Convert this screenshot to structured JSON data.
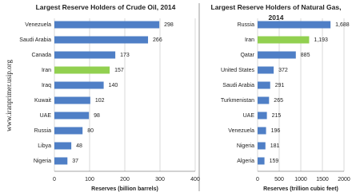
{
  "watermark": "www.iranprimer.usip.org",
  "chart_data": [
    {
      "type": "bar",
      "orientation": "horizontal",
      "title": "Largest Reserve Holders of Crude Oil, 2014",
      "categories": [
        "Venezuela",
        "Saudi Arabia",
        "Canada",
        "Iran",
        "Iraq",
        "Kuwait",
        "UAE",
        "Russia",
        "Libya",
        "Nigeria"
      ],
      "values": [
        298,
        266,
        173,
        157,
        140,
        102,
        98,
        80,
        48,
        37
      ],
      "colors": [
        "#4f7fc6",
        "#4f7fc6",
        "#4f7fc6",
        "#92d050",
        "#4f7fc6",
        "#4f7fc6",
        "#4f7fc6",
        "#4f7fc6",
        "#4f7fc6",
        "#4f7fc6"
      ],
      "xlim": [
        0,
        400
      ],
      "xticks": [
        0,
        100,
        200,
        300,
        400
      ],
      "xlabel": "Reserves (billion barrels)",
      "grid": true
    },
    {
      "type": "bar",
      "orientation": "horizontal",
      "title": "Largest Reserve Holders of Natural Gas, 2014",
      "categories": [
        "Russia",
        "Iran",
        "Qatar",
        "United States",
        "Saudi Arabia",
        "Turkmenistan",
        "UAE",
        "Venezuela",
        "Nigeria",
        "Algeria"
      ],
      "values": [
        1688,
        1193,
        885,
        372,
        291,
        265,
        215,
        196,
        181,
        159
      ],
      "value_labels": [
        "1,688",
        "1,193",
        "885",
        "372",
        "291",
        "265",
        "215",
        "196",
        "181",
        "159"
      ],
      "colors": [
        "#4f7fc6",
        "#92d050",
        "#4f7fc6",
        "#4f7fc6",
        "#4f7fc6",
        "#4f7fc6",
        "#4f7fc6",
        "#4f7fc6",
        "#4f7fc6",
        "#4f7fc6"
      ],
      "xlim": [
        0,
        2000
      ],
      "xticks": [
        0,
        500,
        1000,
        1500,
        2000
      ],
      "xlabel": "Reserves (trillion cubic feet)",
      "grid": true
    }
  ]
}
